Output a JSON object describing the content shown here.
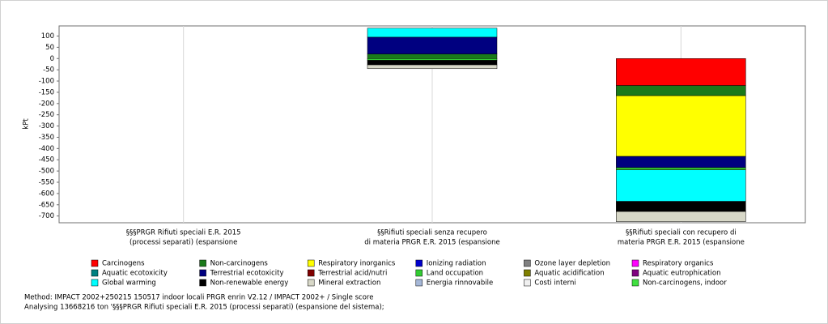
{
  "chart_data": {
    "type": "stacked-bar",
    "y_label": "kPt",
    "categories": [
      [
        "§§§PRGR Rifiuti speciali E.R. 2015",
        "(processi separati) (espansione"
      ],
      [
        "§§Rifiuti speciali senza recupero",
        "di materia PRGR E.R. 2015 (espansione"
      ],
      [
        "§§Rifiuti speciali con recupero di",
        "materia PRGR E.R. 2015 (espansione"
      ]
    ],
    "ylim": [
      -730,
      145
    ],
    "yticks": [
      100,
      50,
      0,
      -50,
      -100,
      -150,
      -200,
      -250,
      -300,
      -350,
      -400,
      -450,
      -500,
      -550,
      -600,
      -650,
      -700
    ],
    "grid": true,
    "series": [
      {
        "name": "Carcinogens",
        "color": "#ff0000",
        "values": [
          0,
          0,
          -120
        ]
      },
      {
        "name": "Non-carcinogens",
        "color": "#1a7a1a",
        "values": [
          0,
          20,
          -45
        ]
      },
      {
        "name": "Respiratory inorganics",
        "color": "#ffff00",
        "values": [
          0,
          0,
          -270
        ]
      },
      {
        "name": "Ionizing radiation",
        "color": "#0000cc",
        "values": [
          0,
          0,
          0
        ]
      },
      {
        "name": "Ozone layer depletion",
        "color": "#808080",
        "values": [
          0,
          0,
          0
        ]
      },
      {
        "name": "Respiratory organics",
        "color": "#ff00ff",
        "values": [
          0,
          0,
          0
        ]
      },
      {
        "name": "Aquatic ecotoxicity",
        "color": "#008080",
        "values": [
          0,
          0,
          0
        ]
      },
      {
        "name": "Terrestrial ecotoxicity",
        "color": "#000080",
        "values": [
          0,
          75,
          -50
        ]
      },
      {
        "name": "Terrestrial acid/nutri",
        "color": "#800000",
        "values": [
          0,
          0,
          0
        ]
      },
      {
        "name": "Land occupation",
        "color": "#33cc33",
        "values": [
          0,
          -8,
          -10
        ]
      },
      {
        "name": "Aquatic acidification",
        "color": "#808000",
        "values": [
          0,
          0,
          0
        ]
      },
      {
        "name": "Aquatic eutrophication",
        "color": "#800080",
        "values": [
          0,
          0,
          0
        ]
      },
      {
        "name": "Global warming",
        "color": "#00ffff",
        "values": [
          0,
          40,
          -140
        ]
      },
      {
        "name": "Non-renewable energy",
        "color": "#000000",
        "values": [
          0,
          -20,
          -45
        ]
      },
      {
        "name": "Mineral extraction",
        "color": "#d8d8c8",
        "values": [
          0,
          -17,
          -45
        ]
      },
      {
        "name": "Energia rinnovabile",
        "color": "#a6b8d8",
        "values": [
          0,
          0,
          0
        ]
      },
      {
        "name": "Costi interni",
        "color": "#f0f0f0",
        "values": [
          0,
          0,
          0
        ]
      },
      {
        "name": "Non-carcinogens, indoor",
        "color": "#40e040",
        "values": [
          0,
          0,
          0
        ]
      }
    ],
    "notes": [
      "Method: IMPACT 2002+250215 150517 indoor locali PRGR enrin V2.12 / IMPACT 2002+ / Single score",
      "Analysing 13668216 ton '§§§PRGR Rifiuti speciali E.R. 2015 (processi separati) (espansione del sistema);"
    ]
  }
}
